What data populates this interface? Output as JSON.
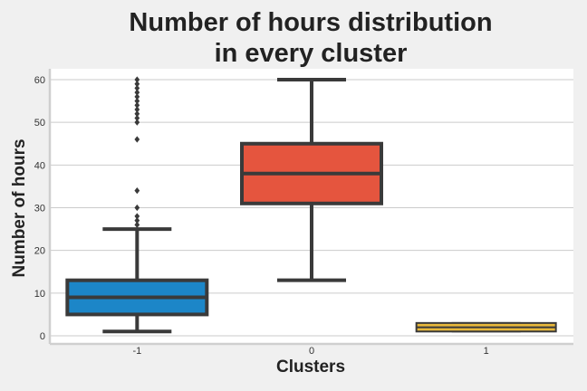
{
  "chart_data": {
    "type": "box",
    "title_lines": [
      "Number of hours distribution",
      "in every cluster"
    ],
    "xlabel": "Clusters",
    "ylabel": "Number of hours",
    "categories": [
      "-1",
      "0",
      "1"
    ],
    "ylim": [
      -2,
      63
    ],
    "yticks": [
      0,
      10,
      20,
      30,
      40,
      50,
      60
    ],
    "grid": true,
    "boxes": [
      {
        "category": "-1",
        "whisker_low": 1,
        "q1": 5,
        "median": 9,
        "q3": 13,
        "whisker_high": 25,
        "outliers": [
          26,
          27,
          28,
          30,
          34,
          46,
          50,
          51,
          52,
          53,
          54,
          55,
          56,
          57,
          58,
          59,
          60
        ],
        "color": "#1c86c8"
      },
      {
        "category": "0",
        "whisker_low": 13,
        "q1": 31,
        "median": 38,
        "q3": 45,
        "whisker_high": 60,
        "outliers": [],
        "color": "#e5553e"
      },
      {
        "category": "1",
        "whisker_low": 1,
        "q1": 1,
        "median": 2,
        "q3": 3,
        "whisker_high": 3,
        "outliers": [],
        "color": "#e8b83a"
      }
    ]
  }
}
